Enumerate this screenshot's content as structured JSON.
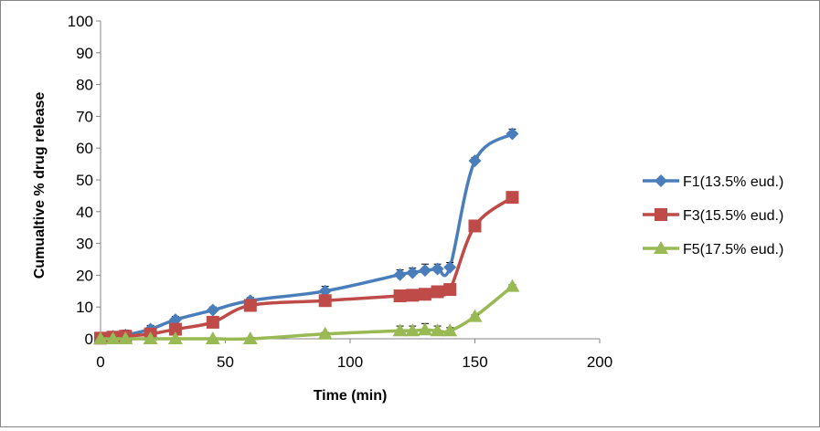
{
  "chart_data": {
    "type": "line",
    "title": "",
    "xlabel": "Time (min)",
    "ylabel": "Cumualtive % drug release",
    "xlim": [
      0,
      200
    ],
    "ylim": [
      0,
      100
    ],
    "xticks": [
      "0",
      "50",
      "100",
      "150",
      "200"
    ],
    "yticks": [
      "0",
      "10",
      "20",
      "30",
      "40",
      "50",
      "60",
      "70",
      "80",
      "90",
      "100"
    ],
    "grid": false,
    "legend_position": "right",
    "x": [
      0,
      5,
      10,
      20,
      30,
      45,
      60,
      90,
      120,
      125,
      130,
      135,
      140,
      150,
      165
    ],
    "series": [
      {
        "name": "F1(13.5% eud.)",
        "color": "#4a7ebb",
        "marker": "diamond",
        "values": [
          0.3,
          0.8,
          1.2,
          3.0,
          6.0,
          9.0,
          12.0,
          15.0,
          20.2,
          20.8,
          21.5,
          22.0,
          22.5,
          56.0,
          64.5
        ],
        "errors": [
          0.5,
          1.0,
          1.5,
          1.2,
          1.0,
          1.0,
          1.0,
          1.5,
          1.5,
          1.5,
          2.0,
          1.5,
          1.5,
          1.0,
          1.5
        ]
      },
      {
        "name": "F3(15.5% eud.)",
        "color": "#be4b48",
        "marker": "square",
        "values": [
          0.2,
          0.5,
          0.8,
          1.5,
          3.0,
          5.2,
          10.5,
          12.0,
          13.5,
          13.7,
          14.0,
          14.8,
          15.5,
          35.5,
          44.5
        ],
        "errors": [
          0.3,
          0.4,
          0.5,
          0.5,
          0.5,
          0.5,
          0.5,
          0.5,
          0.5,
          0.5,
          0.5,
          0.5,
          0.5,
          0.5,
          0.5
        ]
      },
      {
        "name": "F5(17.5% eud.)",
        "color": "#98b954",
        "marker": "triangle",
        "values": [
          0.0,
          0.0,
          0.0,
          0.0,
          0.0,
          0.0,
          0.0,
          1.5,
          2.5,
          2.5,
          2.8,
          2.5,
          2.5,
          7.0,
          16.5
        ],
        "errors": [
          0.3,
          0.3,
          0.3,
          0.3,
          0.3,
          0.3,
          0.3,
          0.5,
          1.5,
          1.5,
          2.0,
          1.5,
          1.0,
          0.5,
          0.5
        ]
      }
    ]
  }
}
